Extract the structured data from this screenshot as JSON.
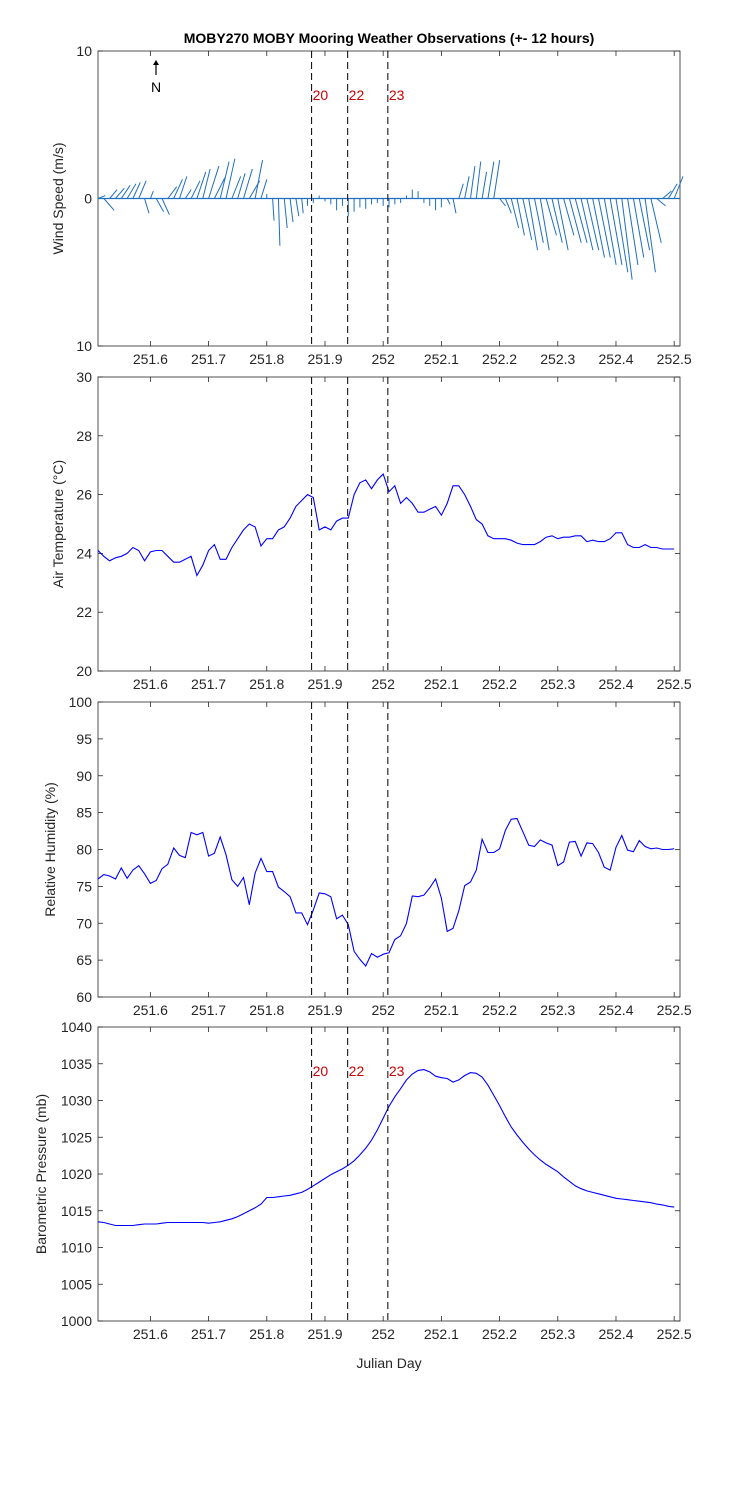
{
  "title": "MOBY270 MOBY Mooring Weather Observations (+- 12 hours)",
  "xlabel": "Julian Day",
  "x_ticks": [
    "251.6",
    "251.7",
    "251.8",
    "251.9",
    "252",
    "252.1",
    "252.2",
    "252.3",
    "252.4",
    "252.5"
  ],
  "x_tick_values": [
    251.6,
    251.7,
    251.8,
    251.9,
    252.0,
    252.1,
    252.2,
    252.3,
    252.4,
    252.5
  ],
  "xlim": [
    251.51,
    252.51
  ],
  "north_label": "N",
  "colors": {
    "series": "#0000ff",
    "wind": "#1f6fbf",
    "marker_text": "#cc0000",
    "axes": "#262626",
    "markers": "#000000"
  },
  "markers": [
    {
      "x": 251.877,
      "label": "20"
    },
    {
      "x": 251.939,
      "label": "22"
    },
    {
      "x": 252.008,
      "label": "23"
    }
  ],
  "chart_data": [
    {
      "type": "quiver",
      "name": "wind",
      "ylabel": "Wind Speed (m/s)",
      "ylim": [
        -10,
        10
      ],
      "y_ticks": [
        "10",
        "0",
        "10"
      ],
      "y_tick_values": [
        10,
        0,
        -10
      ],
      "x": [
        251.51,
        251.52,
        251.53,
        251.54,
        251.55,
        251.56,
        251.57,
        251.58,
        251.59,
        251.6,
        251.61,
        251.62,
        251.63,
        251.64,
        251.65,
        251.66,
        251.67,
        251.68,
        251.69,
        251.7,
        251.71,
        251.72,
        251.73,
        251.74,
        251.75,
        251.76,
        251.77,
        251.78,
        251.79,
        251.8,
        251.81,
        251.82,
        251.83,
        251.84,
        251.85,
        251.86,
        251.87,
        251.88,
        251.89,
        251.9,
        251.91,
        251.92,
        251.93,
        251.94,
        251.95,
        251.96,
        251.97,
        251.98,
        251.99,
        252.0,
        252.01,
        252.02,
        252.03,
        252.04,
        252.05,
        252.06,
        252.07,
        252.08,
        252.09,
        252.1,
        252.11,
        252.12,
        252.13,
        252.14,
        252.15,
        252.16,
        252.17,
        252.18,
        252.19,
        252.2,
        252.21,
        252.22,
        252.23,
        252.24,
        252.25,
        252.26,
        252.27,
        252.28,
        252.29,
        252.3,
        252.31,
        252.32,
        252.33,
        252.34,
        252.35,
        252.36,
        252.37,
        252.38,
        252.39,
        252.4,
        252.41,
        252.42,
        252.43,
        252.44,
        252.45,
        252.46,
        252.47,
        252.48,
        252.49,
        252.5
      ],
      "u": [
        0.05,
        0.07,
        0.05,
        0.06,
        0.06,
        0.06,
        0.05,
        0.05,
        0.03,
        0.02,
        0.05,
        0.05,
        0.06,
        0.06,
        0.05,
        0.04,
        0.06,
        0.06,
        0.05,
        0.07,
        0.07,
        0.06,
        0.06,
        0.06,
        0.05,
        0.06,
        0.07,
        0.05,
        0.04,
        0.0,
        0.01,
        0.01,
        0.02,
        0.02,
        0.02,
        0.01,
        0.0,
        0.0,
        0.0,
        0.0,
        0.0,
        0.0,
        0.0,
        0.0,
        0.0,
        0.0,
        0.0,
        0.0,
        0.0,
        0.0,
        0.0,
        0.0,
        0.0,
        0.0,
        0.0,
        0.0,
        0.0,
        0.0,
        0.0,
        0.0,
        0.02,
        0.02,
        0.03,
        0.03,
        0.03,
        0.03,
        0.03,
        0.04,
        0.04,
        0.04,
        0.04,
        0.05,
        0.05,
        0.06,
        0.06,
        0.06,
        0.06,
        0.07,
        0.07,
        0.07,
        0.07,
        0.08,
        0.08,
        0.08,
        0.08,
        0.08,
        0.08,
        0.08,
        0.08,
        0.08,
        0.07,
        0.07,
        0.07,
        0.07,
        0.07,
        0.07,
        0.06,
        0.06,
        0.06,
        0.06
      ],
      "v": [
        0.2,
        -0.8,
        0.6,
        0.7,
        0.9,
        1.0,
        1.1,
        1.2,
        -1.0,
        0.5,
        -0.9,
        -1.1,
        0.8,
        1.3,
        1.5,
        0.6,
        1.2,
        1.8,
        2.0,
        2.2,
        1.4,
        2.5,
        2.7,
        1.5,
        1.7,
        2.0,
        1.2,
        2.6,
        1.3,
        0.3,
        -1.5,
        -3.2,
        -2.0,
        -1.6,
        -1.2,
        -1.0,
        -0.5,
        -0.3,
        0.2,
        -0.2,
        -0.4,
        -0.8,
        -0.5,
        -1.2,
        -0.9,
        -0.6,
        -0.7,
        -0.4,
        -0.3,
        -0.5,
        -0.6,
        -0.4,
        -0.3,
        0.2,
        0.6,
        0.5,
        -0.3,
        -0.5,
        -0.8,
        -0.6,
        -0.4,
        -1.0,
        1.0,
        1.5,
        2.2,
        2.5,
        1.8,
        2.5,
        2.6,
        -0.5,
        -1.0,
        -2.0,
        -2.5,
        -2.8,
        -3.5,
        -3.0,
        -3.5,
        -2.5,
        -3.0,
        -3.5,
        -2.5,
        -3.0,
        -3.0,
        -3.5,
        -3.5,
        -4.0,
        -4.0,
        -4.5,
        -4.5,
        -5.0,
        -5.5,
        -4.5,
        -4.0,
        -3.5,
        -5.0,
        -3.0,
        -0.5,
        0.5,
        1.0,
        1.5
      ]
    },
    {
      "type": "line",
      "name": "air_temperature",
      "ylabel": "Air Temperature (°C)",
      "ylim": [
        20,
        30
      ],
      "y_ticks": [
        "20",
        "22",
        "24",
        "26",
        "28",
        "30"
      ],
      "y_tick_values": [
        20,
        22,
        24,
        26,
        28,
        30
      ],
      "x": [
        251.51,
        251.52,
        251.53,
        251.54,
        251.55,
        251.56,
        251.57,
        251.58,
        251.59,
        251.6,
        251.61,
        251.62,
        251.63,
        251.64,
        251.65,
        251.66,
        251.67,
        251.68,
        251.69,
        251.7,
        251.71,
        251.72,
        251.73,
        251.74,
        251.75,
        251.76,
        251.77,
        251.78,
        251.79,
        251.8,
        251.81,
        251.82,
        251.83,
        251.84,
        251.85,
        251.86,
        251.87,
        251.88,
        251.89,
        251.9,
        251.91,
        251.92,
        251.93,
        251.94,
        251.95,
        251.96,
        251.97,
        251.98,
        251.99,
        252.0,
        252.01,
        252.02,
        252.03,
        252.04,
        252.05,
        252.06,
        252.07,
        252.08,
        252.09,
        252.1,
        252.11,
        252.12,
        252.13,
        252.14,
        252.15,
        252.16,
        252.17,
        252.18,
        252.19,
        252.2,
        252.21,
        252.22,
        252.23,
        252.24,
        252.25,
        252.26,
        252.27,
        252.28,
        252.29,
        252.3,
        252.31,
        252.32,
        252.33,
        252.34,
        252.35,
        252.36,
        252.37,
        252.38,
        252.39,
        252.4,
        252.41,
        252.42,
        252.43,
        252.44,
        252.45,
        252.46,
        252.47,
        252.48,
        252.49,
        252.5
      ],
      "y": [
        24.1,
        23.9,
        23.75,
        23.85,
        23.9,
        24.0,
        24.2,
        24.1,
        23.75,
        24.05,
        24.1,
        24.1,
        23.9,
        23.7,
        23.7,
        23.8,
        23.9,
        23.25,
        23.6,
        24.1,
        24.3,
        23.8,
        23.8,
        24.2,
        24.5,
        24.8,
        25.0,
        24.9,
        24.25,
        24.5,
        24.5,
        24.8,
        24.9,
        25.2,
        25.6,
        25.8,
        26.0,
        25.9,
        24.8,
        24.9,
        24.8,
        25.1,
        25.2,
        25.2,
        26.0,
        26.4,
        26.5,
        26.2,
        26.5,
        26.7,
        26.1,
        26.3,
        25.7,
        25.9,
        25.7,
        25.4,
        25.4,
        25.5,
        25.6,
        25.3,
        25.7,
        26.3,
        26.3,
        26.0,
        25.6,
        25.15,
        25.0,
        24.6,
        24.5,
        24.5,
        24.5,
        24.45,
        24.35,
        24.3,
        24.3,
        24.3,
        24.4,
        24.55,
        24.6,
        24.5,
        24.55,
        24.55,
        24.6,
        24.6,
        24.4,
        24.45,
        24.4,
        24.4,
        24.5,
        24.7,
        24.7,
        24.3,
        24.2,
        24.2,
        24.3,
        24.2,
        24.2,
        24.15,
        24.15,
        24.15
      ]
    },
    {
      "type": "line",
      "name": "relative_humidity",
      "ylabel": "Relative Humidity (%)",
      "ylim": [
        60,
        100
      ],
      "y_ticks": [
        "60",
        "65",
        "70",
        "75",
        "80",
        "85",
        "90",
        "95",
        "100"
      ],
      "y_tick_values": [
        60,
        65,
        70,
        75,
        80,
        85,
        90,
        95,
        100
      ],
      "x": [
        251.51,
        251.52,
        251.53,
        251.54,
        251.55,
        251.56,
        251.57,
        251.58,
        251.59,
        251.6,
        251.61,
        251.62,
        251.63,
        251.64,
        251.65,
        251.66,
        251.67,
        251.68,
        251.69,
        251.7,
        251.71,
        251.72,
        251.73,
        251.74,
        251.75,
        251.76,
        251.77,
        251.78,
        251.79,
        251.8,
        251.81,
        251.82,
        251.83,
        251.84,
        251.85,
        251.86,
        251.87,
        251.88,
        251.89,
        251.9,
        251.91,
        251.92,
        251.93,
        251.94,
        251.95,
        251.96,
        251.97,
        251.98,
        251.99,
        252.0,
        252.01,
        252.02,
        252.03,
        252.04,
        252.05,
        252.06,
        252.07,
        252.08,
        252.09,
        252.1,
        252.11,
        252.12,
        252.13,
        252.14,
        252.15,
        252.16,
        252.17,
        252.18,
        252.19,
        252.2,
        252.21,
        252.22,
        252.23,
        252.24,
        252.25,
        252.26,
        252.27,
        252.28,
        252.29,
        252.3,
        252.31,
        252.32,
        252.33,
        252.34,
        252.35,
        252.36,
        252.37,
        252.38,
        252.39,
        252.4,
        252.41,
        252.42,
        252.43,
        252.44,
        252.45,
        252.46,
        252.47,
        252.48,
        252.49,
        252.5
      ],
      "y": [
        76.0,
        76.6,
        76.4,
        76.0,
        77.5,
        76.1,
        77.2,
        77.8,
        76.7,
        75.4,
        75.8,
        77.4,
        78.0,
        80.2,
        79.2,
        78.9,
        82.3,
        82.0,
        82.3,
        79.1,
        79.5,
        81.7,
        79.3,
        75.9,
        75.0,
        76.2,
        72.5,
        76.8,
        78.8,
        77.0,
        77.0,
        74.9,
        74.3,
        73.6,
        71.4,
        71.4,
        69.8,
        71.8,
        74.1,
        74.0,
        73.6,
        70.6,
        71.1,
        69.8,
        66.2,
        65.1,
        64.2,
        65.9,
        65.4,
        65.8,
        66.0,
        67.8,
        68.3,
        70.0,
        73.7,
        73.6,
        73.8,
        74.8,
        76.0,
        73.4,
        68.9,
        69.3,
        71.7,
        75.1,
        75.6,
        77.2,
        81.4,
        79.6,
        79.6,
        80.1,
        82.6,
        84.1,
        84.2,
        82.4,
        80.6,
        80.4,
        81.3,
        80.9,
        80.6,
        77.8,
        78.3,
        81.0,
        81.1,
        79.1,
        80.9,
        80.8,
        79.6,
        77.6,
        77.2,
        80.3,
        81.9,
        79.9,
        79.7,
        81.2,
        80.4,
        80.1,
        80.2,
        80.0,
        80.0,
        80.1
      ]
    },
    {
      "type": "line",
      "name": "barometric_pressure",
      "ylabel": "Barometric Pressure (mb)",
      "xlabel": "Julian Day",
      "ylim": [
        1000,
        1040
      ],
      "y_ticks": [
        "1000",
        "1005",
        "1010",
        "1015",
        "1020",
        "1025",
        "1030",
        "1035",
        "1040"
      ],
      "y_tick_values": [
        1000,
        1005,
        1010,
        1015,
        1020,
        1025,
        1030,
        1035,
        1040
      ],
      "x": [
        251.51,
        251.52,
        251.53,
        251.54,
        251.55,
        251.56,
        251.57,
        251.58,
        251.59,
        251.6,
        251.61,
        251.62,
        251.63,
        251.64,
        251.65,
        251.66,
        251.67,
        251.68,
        251.69,
        251.7,
        251.71,
        251.72,
        251.73,
        251.74,
        251.75,
        251.76,
        251.77,
        251.78,
        251.79,
        251.8,
        251.81,
        251.82,
        251.83,
        251.84,
        251.85,
        251.86,
        251.87,
        251.88,
        251.89,
        251.9,
        251.91,
        251.92,
        251.93,
        251.94,
        251.95,
        251.96,
        251.97,
        251.98,
        251.99,
        252.0,
        252.01,
        252.02,
        252.03,
        252.04,
        252.05,
        252.06,
        252.07,
        252.08,
        252.09,
        252.1,
        252.11,
        252.12,
        252.13,
        252.14,
        252.15,
        252.16,
        252.17,
        252.18,
        252.19,
        252.2,
        252.21,
        252.22,
        252.23,
        252.24,
        252.25,
        252.26,
        252.27,
        252.28,
        252.29,
        252.3,
        252.31,
        252.32,
        252.33,
        252.34,
        252.35,
        252.36,
        252.37,
        252.38,
        252.39,
        252.4,
        252.41,
        252.42,
        252.43,
        252.44,
        252.45,
        252.46,
        252.47,
        252.48,
        252.49,
        252.5
      ],
      "y": [
        1013.5,
        1013.4,
        1013.2,
        1013.0,
        1013.0,
        1013.0,
        1013.0,
        1013.1,
        1013.2,
        1013.2,
        1013.2,
        1013.3,
        1013.4,
        1013.4,
        1013.4,
        1013.4,
        1013.4,
        1013.4,
        1013.4,
        1013.3,
        1013.4,
        1013.5,
        1013.7,
        1013.9,
        1014.2,
        1014.6,
        1015.0,
        1015.4,
        1015.9,
        1016.8,
        1016.8,
        1016.9,
        1017.0,
        1017.1,
        1017.3,
        1017.5,
        1017.9,
        1018.4,
        1018.9,
        1019.4,
        1019.9,
        1020.3,
        1020.7,
        1021.2,
        1021.8,
        1022.6,
        1023.5,
        1024.6,
        1026.0,
        1027.6,
        1029.2,
        1030.5,
        1031.6,
        1032.8,
        1033.6,
        1034.1,
        1034.2,
        1033.9,
        1033.3,
        1033.1,
        1033.0,
        1032.5,
        1032.8,
        1033.4,
        1033.8,
        1033.7,
        1033.2,
        1032.1,
        1030.7,
        1029.3,
        1027.8,
        1026.4,
        1025.3,
        1024.3,
        1023.4,
        1022.6,
        1021.9,
        1021.3,
        1020.8,
        1020.3,
        1019.6,
        1019.0,
        1018.4,
        1018.0,
        1017.7,
        1017.5,
        1017.3,
        1017.1,
        1016.9,
        1016.7,
        1016.6,
        1016.5,
        1016.4,
        1016.3,
        1016.2,
        1016.1,
        1015.9,
        1015.8,
        1015.6,
        1015.5
      ]
    }
  ]
}
